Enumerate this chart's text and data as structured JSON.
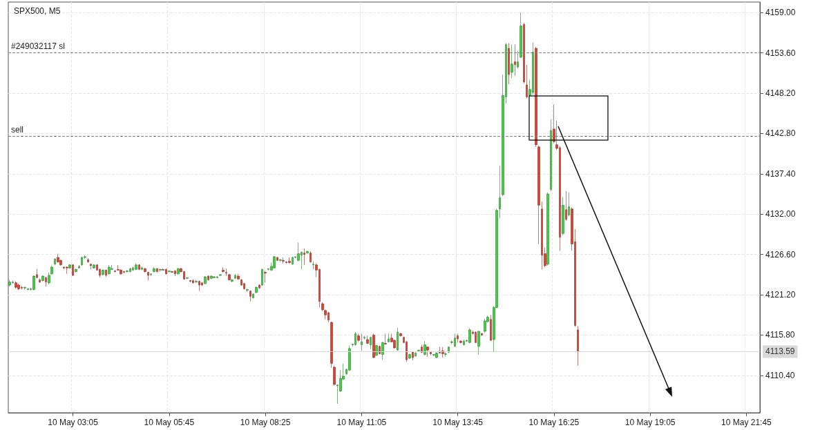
{
  "chart_data": {
    "type": "candlestick",
    "title": "SPX500, M5",
    "categories": [
      null,
      null,
      null,
      null,
      null,
      null,
      null,
      null,
      null,
      null,
      null,
      null,
      null,
      null,
      null,
      null,
      null,
      null,
      null,
      null,
      null,
      "10 May 03:05",
      null,
      null,
      null,
      null,
      null,
      null,
      null,
      null,
      null,
      null,
      null,
      null,
      null,
      null,
      null,
      null,
      null,
      null,
      null,
      null,
      null,
      null,
      null,
      null,
      null,
      null,
      null,
      null,
      null,
      null,
      null,
      "10 May 05:45",
      null,
      null,
      null,
      null,
      null,
      null,
      null,
      null,
      null,
      null,
      null,
      null,
      null,
      null,
      null,
      null,
      null,
      null,
      null,
      null,
      null,
      null,
      null,
      null,
      null,
      null,
      null,
      null,
      null,
      null,
      null,
      "10 May 08:25",
      null,
      null,
      null,
      null,
      null,
      null,
      null,
      null,
      null,
      null,
      null,
      null,
      null,
      null,
      null,
      null,
      null,
      null,
      null,
      null,
      null,
      null,
      null,
      null,
      null,
      null,
      null,
      null,
      null,
      null,
      null,
      "10 May 11:05",
      null,
      null,
      null,
      null,
      null,
      null,
      null,
      null,
      null,
      null,
      null,
      null,
      null,
      null,
      null,
      null,
      null,
      null,
      null,
      null,
      null,
      null,
      null,
      null,
      null,
      null,
      null,
      null,
      null,
      null,
      null,
      "10 May 13:45",
      null,
      null,
      null,
      null,
      null,
      null,
      null,
      null,
      null,
      null,
      null,
      null,
      null,
      null,
      null,
      null,
      null,
      null,
      null,
      null,
      null,
      null,
      null,
      null,
      null,
      null,
      null,
      null,
      null,
      null,
      null,
      "10 May 16:25",
      null,
      null,
      null,
      null,
      null,
      null,
      null,
      null,
      null,
      null,
      null,
      null,
      null,
      null,
      null,
      null,
      null,
      null,
      null,
      null,
      null,
      null,
      null,
      null,
      null,
      null,
      null,
      null,
      null,
      null,
      null,
      "10 May 19:05",
      null,
      null,
      null,
      null,
      null,
      null,
      null,
      null,
      null,
      null,
      null,
      null,
      null,
      null,
      null,
      null,
      null,
      null,
      null,
      null,
      null,
      null,
      null,
      null,
      null,
      null,
      null,
      null,
      null,
      null,
      null,
      "10 May 21:45",
      null,
      null,
      null,
      null
    ],
    "ohlc": [
      [
        4122.5,
        4123.2,
        4122.3,
        4122.9
      ],
      [
        4122.8,
        4123.1,
        4122.7,
        4122.9
      ],
      [
        4122.8,
        4123.0,
        4122.0,
        4122.2
      ],
      [
        4122.5,
        4122.7,
        4121.8,
        4122.0
      ],
      [
        4122.2,
        4122.4,
        4121.9,
        4122.1
      ],
      [
        4122.1,
        4122.3,
        4121.9,
        4122.2
      ],
      [
        4121.9,
        4122.1,
        4121.8,
        4122.0
      ],
      [
        4121.9,
        4122.1,
        4121.8,
        4122.0
      ],
      [
        4121.9,
        4123.8,
        4121.8,
        4123.7
      ],
      [
        4123.9,
        4124.7,
        4123.4,
        4123.5
      ],
      [
        4123.2,
        4123.4,
        4122.8,
        4122.9
      ],
      [
        4123.1,
        4123.8,
        4123.0,
        4123.7
      ],
      [
        4123.5,
        4123.6,
        4122.3,
        4122.9
      ],
      [
        4122.8,
        4124.2,
        4122.6,
        4123.8
      ],
      [
        4124.0,
        4125.1,
        4123.9,
        4124.9
      ],
      [
        4125.3,
        4126.1,
        4125.2,
        4126.0
      ],
      [
        4126.2,
        4126.7,
        4125.5,
        4125.6
      ],
      [
        4125.8,
        4125.9,
        4125.1,
        4125.2
      ],
      [
        4124.9,
        4125.0,
        4124.6,
        4124.8
      ],
      [
        4124.9,
        4125.0,
        4124.0,
        4124.8
      ],
      [
        4124.8,
        4125.3,
        4124.7,
        4125.2
      ],
      [
        4125.2,
        4125.3,
        4123.7,
        4123.8
      ],
      [
        4124.3,
        4124.7,
        4124.2,
        4124.6
      ],
      [
        4124.8,
        4125.2,
        4124.7,
        4125.0
      ],
      [
        4125.2,
        4126.3,
        4125.1,
        4126.2
      ],
      [
        4126.2,
        4126.5,
        4126.0,
        4126.3
      ],
      [
        4125.9,
        4126.1,
        4125.5,
        4125.6
      ],
      [
        4125.3,
        4125.4,
        4124.6,
        4125.1
      ],
      [
        4124.8,
        4125.3,
        4124.7,
        4125.2
      ],
      [
        4125.2,
        4125.3,
        4124.4,
        4124.5
      ],
      [
        4124.6,
        4124.7,
        4123.5,
        4123.8
      ],
      [
        4123.9,
        4124.6,
        4123.8,
        4124.5
      ],
      [
        4124.5,
        4124.6,
        4123.6,
        4123.8
      ],
      [
        4124.0,
        4125.2,
        4123.9,
        4124.9
      ],
      [
        4124.6,
        4125.2,
        4124.5,
        4124.7
      ],
      [
        4124.4,
        4124.5,
        4124.2,
        4124.3
      ],
      [
        4124.6,
        4125.2,
        4124.4,
        4124.5
      ],
      [
        4124.5,
        4124.6,
        4123.9,
        4124.0
      ],
      [
        4124.3,
        4124.4,
        4124.1,
        4124.2
      ],
      [
        4124.3,
        4124.5,
        4124.2,
        4124.4
      ],
      [
        4124.3,
        4124.8,
        4124.2,
        4124.7
      ],
      [
        4124.5,
        4125.0,
        4124.4,
        4124.8
      ],
      [
        4124.6,
        4125.4,
        4124.5,
        4125.2
      ],
      [
        4125.2,
        4125.3,
        4124.5,
        4124.6
      ],
      [
        4124.6,
        4125.0,
        4124.5,
        4124.8
      ],
      [
        4124.7,
        4124.8,
        4124.2,
        4124.3
      ],
      [
        4124.2,
        4124.3,
        4123.1,
        4123.8
      ],
      [
        4123.9,
        4124.0,
        4123.7,
        4124.0
      ],
      [
        4124.3,
        4124.9,
        4124.2,
        4124.7
      ],
      [
        4124.7,
        4124.8,
        4124.2,
        4124.3
      ],
      [
        4124.5,
        4124.7,
        4124.3,
        4124.6
      ],
      [
        4124.6,
        4124.7,
        4124.5,
        4124.5
      ],
      [
        4124.6,
        4124.7,
        4123.9,
        4124.0
      ],
      [
        4124.3,
        4124.4,
        4124.2,
        4124.4
      ],
      [
        4124.3,
        4124.4,
        4124.2,
        4124.2
      ],
      [
        4124.4,
        4124.5,
        4123.7,
        4124.0
      ],
      [
        4124.0,
        4124.8,
        4123.9,
        4124.7
      ],
      [
        4124.7,
        4124.8,
        4124.2,
        4124.3
      ],
      [
        4124.3,
        4124.4,
        4123.2,
        4123.3
      ],
      [
        4123.4,
        4123.5,
        4123.3,
        4123.5
      ],
      [
        4123.1,
        4123.2,
        4122.9,
        4123.0
      ],
      [
        4123.1,
        4123.3,
        4122.7,
        4122.8
      ],
      [
        4122.9,
        4123.2,
        4122.8,
        4123.0
      ],
      [
        4123.0,
        4123.1,
        4121.7,
        4122.5
      ],
      [
        4122.8,
        4122.9,
        4122.4,
        4122.5
      ],
      [
        4122.7,
        4123.7,
        4122.6,
        4123.6
      ],
      [
        4123.7,
        4123.8,
        4123.1,
        4123.2
      ],
      [
        4123.4,
        4123.8,
        4123.3,
        4123.7
      ],
      [
        4123.5,
        4123.7,
        4123.4,
        4123.6
      ],
      [
        4123.5,
        4123.7,
        4123.4,
        4123.6
      ],
      [
        4123.8,
        4123.9,
        4123.7,
        4123.9
      ],
      [
        4124.5,
        4124.9,
        4124.2,
        4124.3
      ],
      [
        4124.2,
        4124.7,
        4123.7,
        4124.1
      ],
      [
        4123.9,
        4124.0,
        4123.1,
        4123.2
      ],
      [
        4123.0,
        4123.3,
        4122.9,
        4123.2
      ],
      [
        4123.4,
        4124.0,
        4123.3,
        4123.8
      ],
      [
        4123.7,
        4124.0,
        4123.2,
        4123.3
      ],
      [
        4123.2,
        4123.3,
        4122.4,
        4122.5
      ],
      [
        4122.7,
        4122.8,
        4121.9,
        4122.0
      ],
      [
        4121.8,
        4122.0,
        4121.6,
        4121.9
      ],
      [
        4121.7,
        4121.8,
        4120.3,
        4121.0
      ],
      [
        4120.8,
        4121.4,
        4120.7,
        4121.3
      ],
      [
        4121.5,
        4122.3,
        4121.4,
        4122.2
      ],
      [
        4122.5,
        4122.6,
        4122.0,
        4122.1
      ],
      [
        4122.5,
        4124.7,
        4122.4,
        4124.6
      ],
      [
        4124.2,
        4124.4,
        4122.8,
        4124.1
      ],
      [
        4124.6,
        4124.7,
        4124.5,
        4124.7
      ],
      [
        4124.5,
        4125.5,
        4124.4,
        4125.0
      ],
      [
        4124.8,
        4126.4,
        4124.7,
        4126.3
      ],
      [
        4126.2,
        4126.3,
        4125.7,
        4125.8
      ],
      [
        4125.8,
        4126.0,
        4125.6,
        4125.9
      ],
      [
        4125.8,
        4126.2,
        4125.4,
        4125.7
      ],
      [
        4125.6,
        4125.7,
        4125.4,
        4125.5
      ],
      [
        4125.7,
        4126.2,
        4125.4,
        4125.5
      ],
      [
        4125.3,
        4126.3,
        4125.2,
        4126.2
      ],
      [
        4126.2,
        4126.3,
        4126.1,
        4126.3
      ],
      [
        4125.8,
        4128.2,
        4125.7,
        4126.7
      ],
      [
        4126.5,
        4127.0,
        4124.6,
        4126.9
      ],
      [
        4126.8,
        4127.4,
        4125.2,
        4126.6
      ],
      [
        4126.8,
        4127.1,
        4126.7,
        4127.0
      ],
      [
        4126.8,
        4127.0,
        4125.5,
        4125.6
      ],
      [
        4125.2,
        4125.7,
        4124.6,
        4125.3
      ],
      [
        4125.2,
        4125.4,
        4123.6,
        4124.5
      ],
      [
        4124.6,
        4124.7,
        4119.5,
        4120.3
      ],
      [
        4120.0,
        4120.2,
        4119.0,
        4119.2
      ],
      [
        4119.1,
        4119.2,
        4117.9,
        4118.5
      ],
      [
        4118.8,
        4118.9,
        4117.5,
        4117.8
      ],
      [
        4117.5,
        4117.6,
        4111.4,
        4112.0
      ],
      [
        4111.5,
        4111.7,
        4109.0,
        4109.2
      ],
      [
        4109.0,
        4109.2,
        4106.6,
        4109.1
      ],
      [
        4108.3,
        4111.1,
        4108.2,
        4110.0
      ],
      [
        4109.9,
        4112.0,
        4109.8,
        4110.3
      ],
      [
        4110.6,
        4111.3,
        4110.5,
        4111.2
      ],
      [
        4111.1,
        4114.4,
        4111.0,
        4114.0
      ],
      [
        4114.5,
        4114.6,
        4114.3,
        4114.6
      ],
      [
        4114.5,
        4116.2,
        4114.4,
        4116.0
      ],
      [
        4115.7,
        4116.0,
        4114.9,
        4115.1
      ],
      [
        4114.5,
        4116.0,
        4113.7,
        4114.9
      ],
      [
        4115.4,
        4115.7,
        4115.2,
        4115.5
      ],
      [
        4115.2,
        4115.7,
        4114.6,
        4114.7
      ],
      [
        4114.5,
        4115.6,
        4113.9,
        4115.5
      ],
      [
        4115.8,
        4116.0,
        4112.7,
        4112.8
      ],
      [
        4113.1,
        4114.5,
        4113.0,
        4114.4
      ],
      [
        4114.3,
        4114.4,
        4113.2,
        4113.3
      ],
      [
        4113.2,
        4114.9,
        4112.5,
        4114.8
      ],
      [
        4114.7,
        4116.0,
        4114.5,
        4114.6
      ],
      [
        4114.9,
        4116.0,
        4114.8,
        4115.3
      ],
      [
        4115.4,
        4116.0,
        4114.8,
        4114.9
      ],
      [
        4115.1,
        4115.2,
        4114.0,
        4114.1
      ],
      [
        4113.8,
        4116.8,
        4113.7,
        4116.2
      ],
      [
        4116.0,
        4116.1,
        4115.6,
        4115.7
      ],
      [
        4115.5,
        4115.6,
        4114.7,
        4114.8
      ],
      [
        4114.9,
        4115.0,
        4112.2,
        4112.5
      ],
      [
        4112.7,
        4113.3,
        4112.6,
        4113.2
      ],
      [
        4113.5,
        4113.6,
        4112.4,
        4112.8
      ],
      [
        4113.0,
        4113.5,
        4112.9,
        4113.4
      ],
      [
        4113.7,
        4113.8,
        4113.6,
        4113.8
      ],
      [
        4114.2,
        4114.5,
        4113.4,
        4113.5
      ],
      [
        4113.2,
        4115.0,
        4113.1,
        4114.5
      ],
      [
        4114.2,
        4114.3,
        4112.9,
        4113.8
      ],
      [
        4113.5,
        4113.6,
        4113.1,
        4113.3
      ],
      [
        4113.1,
        4113.2,
        4113.0,
        4113.2
      ],
      [
        4112.8,
        4113.5,
        4112.7,
        4113.4
      ],
      [
        4113.5,
        4114.2,
        4113.3,
        4113.4
      ],
      [
        4113.7,
        4114.2,
        4112.8,
        4113.3
      ],
      [
        4113.2,
        4113.5,
        4112.9,
        4113.3
      ],
      [
        4113.5,
        4114.3,
        4113.4,
        4114.2
      ],
      [
        4114.8,
        4115.1,
        4114.6,
        4114.9
      ],
      [
        4114.3,
        4116.0,
        4114.2,
        4115.4
      ],
      [
        4115.7,
        4116.0,
        4114.8,
        4115.3
      ],
      [
        4115.0,
        4115.1,
        4114.7,
        4114.8
      ],
      [
        4114.5,
        4115.2,
        4114.4,
        4115.0
      ],
      [
        4115.0,
        4115.2,
        4114.9,
        4115.1
      ],
      [
        4114.8,
        4116.7,
        4114.7,
        4116.5
      ],
      [
        4116.2,
        4116.4,
        4115.9,
        4116.0
      ],
      [
        4116.2,
        4116.3,
        4114.7,
        4114.8
      ],
      [
        4114.3,
        4116.4,
        4113.2,
        4116.3
      ],
      [
        4116.0,
        4116.1,
        4115.7,
        4115.8
      ],
      [
        4116.3,
        4118.0,
        4116.1,
        4117.7
      ],
      [
        4117.6,
        4118.4,
        4117.5,
        4118.2
      ],
      [
        4117.9,
        4118.5,
        4115.0,
        4115.1
      ],
      [
        4115.2,
        4119.7,
        4113.6,
        4119.5
      ],
      [
        4119.5,
        4132.7,
        4119.4,
        4132.5
      ],
      [
        4132.7,
        4138.5,
        4131.4,
        4134.2
      ],
      [
        4134.6,
        4150.7,
        4134.4,
        4147.9
      ],
      [
        4147.7,
        4154.9,
        4146.8,
        4154.7
      ],
      [
        4154.2,
        4154.9,
        4149.4,
        4150.7
      ],
      [
        4151.0,
        4154.7,
        4150.2,
        4152.1
      ],
      [
        4152.4,
        4154.7,
        4150.5,
        4152.0
      ],
      [
        4151.7,
        4153.9,
        4151.5,
        4152.4
      ],
      [
        4153.0,
        4159.0,
        4152.9,
        4157.2
      ],
      [
        4157.4,
        4157.6,
        4149.5,
        4149.7
      ],
      [
        4149.3,
        4152.0,
        4147.5,
        4147.7
      ],
      [
        4147.9,
        4150.0,
        4147.7,
        4148.7
      ],
      [
        4148.3,
        4155.0,
        4148.0,
        4153.7
      ],
      [
        4154.2,
        4154.4,
        4141.0,
        4141.3
      ],
      [
        4141.0,
        4141.2,
        4128.0,
        4133.2
      ],
      [
        4132.7,
        4133.7,
        4124.6,
        4126.5
      ],
      [
        4126.7,
        4127.5,
        4124.9,
        4125.1
      ],
      [
        4125.3,
        4134.9,
        4125.1,
        4134.7
      ],
      [
        4135.3,
        4144.7,
        4135.1,
        4143.2
      ],
      [
        4143.4,
        4146.7,
        4141.5,
        4141.7
      ],
      [
        4141.3,
        4144.5,
        4140.6,
        4140.8
      ],
      [
        4140.9,
        4141.1,
        4127.1,
        4128.9
      ],
      [
        4129.4,
        4134.3,
        4129.2,
        4133.2
      ],
      [
        4132.6,
        4135.1,
        4131.1,
        4131.3
      ],
      [
        4131.9,
        4134.9,
        4131.7,
        4133.0
      ],
      [
        4132.7,
        4132.9,
        4127.1,
        4128.0
      ],
      [
        4128.3,
        4130.0,
        4116.9,
        4117.1
      ],
      [
        4116.5,
        4117.0,
        4111.7,
        4113.6
      ],
      null,
      null,
      null,
      null,
      null,
      null,
      null,
      null,
      null,
      null,
      null,
      null,
      null,
      null,
      null,
      null,
      null,
      null,
      null,
      null,
      null,
      null,
      null,
      null,
      null,
      null,
      null,
      null,
      null,
      null,
      null,
      null,
      null,
      null,
      null,
      null,
      null,
      null,
      null,
      null,
      null,
      null,
      null,
      null,
      null,
      null,
      null,
      null,
      null,
      null,
      null,
      null,
      null,
      null,
      null,
      null,
      null,
      null,
      null,
      null
    ],
    "ylim": [
      4105.4,
      4160.4
    ],
    "yticks": [
      {
        "value": 4110.4,
        "label": "4110.40"
      },
      {
        "value": 4115.8,
        "label": "4115.80"
      },
      {
        "value": 4121.2,
        "label": "4121.20"
      },
      {
        "value": 4126.6,
        "label": "4126.60"
      },
      {
        "value": 4132,
        "label": "4132.00"
      },
      {
        "value": 4137.4,
        "label": "4137.40"
      },
      {
        "value": 4142.8,
        "label": "4142.80"
      },
      {
        "value": 4148.2,
        "label": "4148.20"
      },
      {
        "value": 4153.6,
        "label": "4153.60"
      },
      {
        "value": 4159,
        "label": "4159.00"
      }
    ],
    "ref_lines": [
      {
        "axis": "y",
        "value": 4153.6,
        "label": "#249032117 sl",
        "color": "#808080",
        "line_style": "dashed"
      },
      {
        "axis": "y",
        "value": 4142.4,
        "label": "sell",
        "color": "#808080",
        "line_style": "dashed"
      },
      {
        "axis": "y",
        "value": 4113.59,
        "label": "4113.59",
        "color": "#d9d9d9",
        "line_style": "solid"
      }
    ],
    "grid": true
  }
}
